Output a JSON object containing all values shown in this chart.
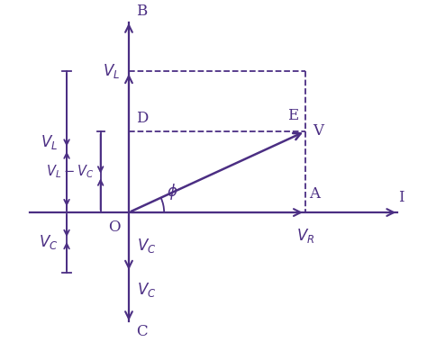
{
  "color": "#4B2E83",
  "bg_color": "#ffffff",
  "VR": 2.5,
  "VL": 2.0,
  "VC": 0.85,
  "VL_minus_VC": 1.15,
  "figsize": [
    4.74,
    3.8
  ],
  "dpi": 100,
  "axis_xlim": [
    -1.6,
    4.0
  ],
  "axis_ylim": [
    -1.7,
    2.9
  ],
  "phi_label": "$\\phi$"
}
